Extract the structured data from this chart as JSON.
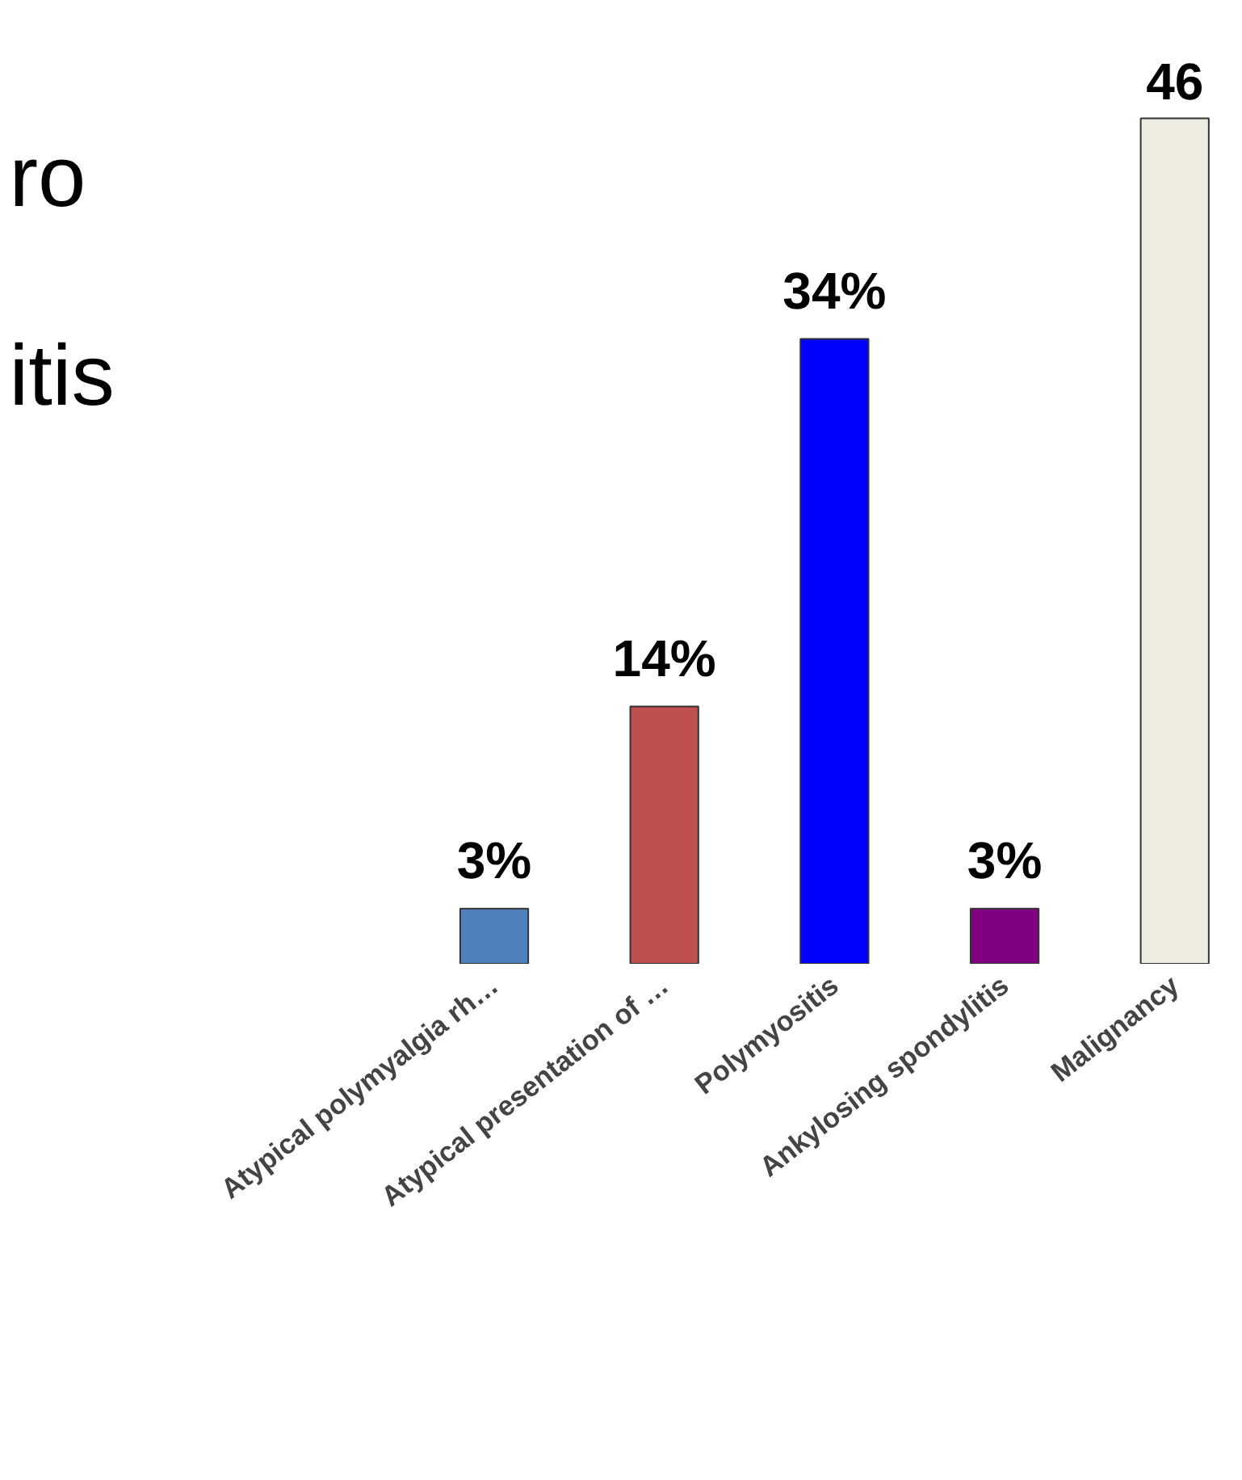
{
  "chart_data": {
    "type": "bar",
    "annotations": [
      "ro",
      "itis"
    ],
    "categories": [
      "Atypical polymyalgia rh…",
      "Atypical presentation of …",
      "Polymyositis",
      "Ankylosing spondylitis",
      "Malignancy"
    ],
    "values": [
      3,
      14,
      34,
      3,
      46
    ],
    "colors": [
      "#4f81bd",
      "#c0504d",
      "#0000ff",
      "#800080",
      "#eeece1"
    ],
    "value_labels": [
      "3%",
      "14%",
      "34%",
      "3%",
      "46"
    ],
    "grid": false
  }
}
